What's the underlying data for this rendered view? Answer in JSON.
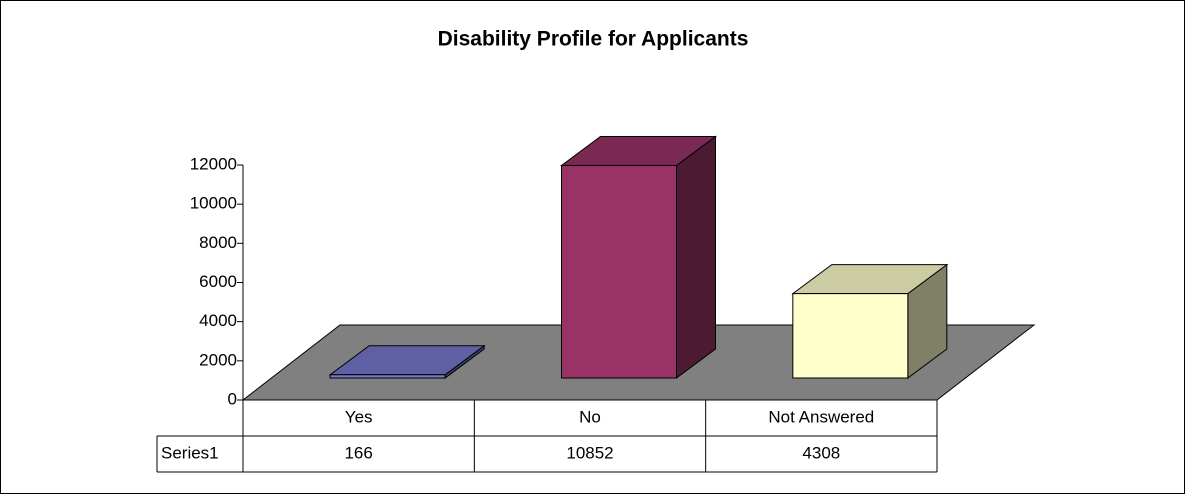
{
  "chart_data": {
    "type": "bar3d",
    "title": "Disability Profile for Applicants",
    "categories": [
      "Yes",
      "No",
      "Not Answered"
    ],
    "series": [
      {
        "name": "Series1",
        "colors": [
          "#7777cc",
          "#993366",
          "#ffffcc"
        ],
        "values": [
          166,
          10852,
          4308
        ]
      }
    ],
    "ylim": [
      0,
      12000
    ],
    "yticks": [
      0,
      2000,
      4000,
      6000,
      8000,
      10000,
      12000
    ],
    "data_table": true
  }
}
